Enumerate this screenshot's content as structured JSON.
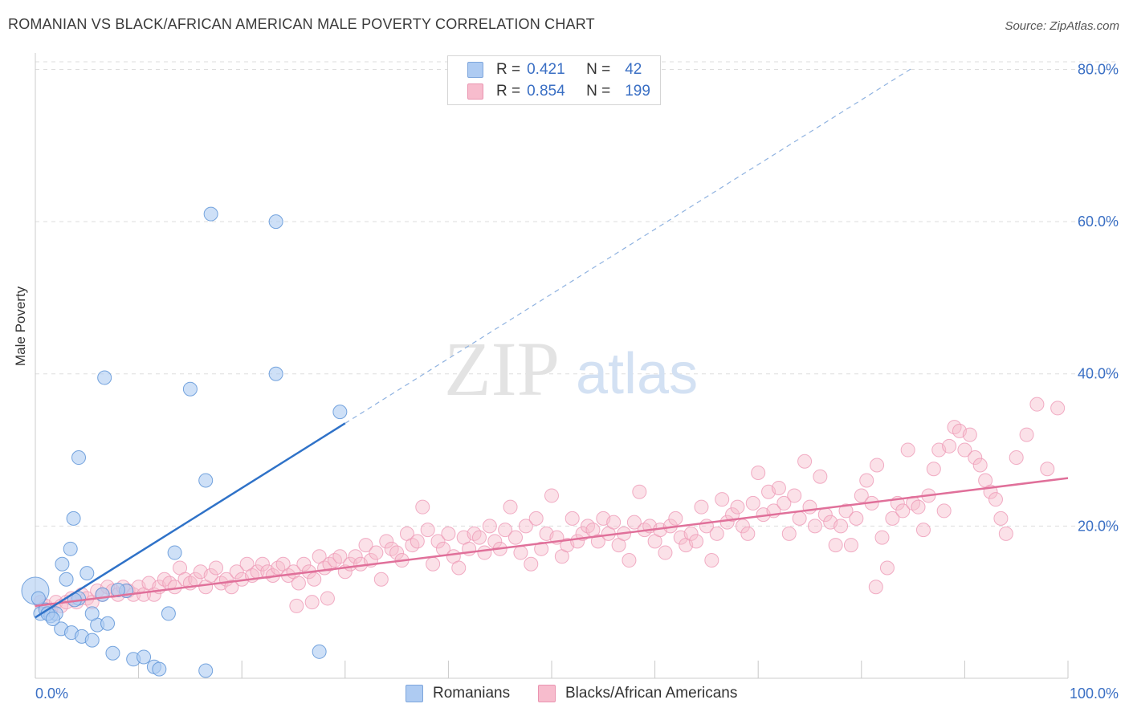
{
  "header": {
    "title": "ROMANIAN VS BLACK/AFRICAN AMERICAN MALE POVERTY CORRELATION CHART",
    "source": "Source: ZipAtlas.com"
  },
  "legend": {
    "rows": [
      {
        "r_label": "R =",
        "r_value": "0.421",
        "n_label": "N =",
        "n_value": "42",
        "color": "#aecbf2"
      },
      {
        "r_label": "R =",
        "r_value": "0.854",
        "n_label": "N =",
        "n_value": "199",
        "color": "#f7bccd"
      }
    ]
  },
  "bottom_legend": {
    "items": [
      {
        "label": "Romanians",
        "color": "#aecbf2"
      },
      {
        "label": "Blacks/African Americans",
        "color": "#f7bccd"
      }
    ]
  },
  "colors": {
    "blue_fill": "#aecbf2",
    "blue_line": "#2f72c8",
    "pink_fill": "#f7bccd",
    "pink_line": "#e0709a",
    "tick_blue": "#3a6fc4",
    "grid": "#dddddd"
  },
  "watermark": {
    "zip": "ZIP",
    "atlas": "atlas"
  },
  "chart_data": {
    "type": "scatter",
    "xlabel": "",
    "ylabel": "Male Poverty",
    "x_tick_labels": [
      "0.0%",
      "100.0%"
    ],
    "y_tick_labels": [
      "20.0%",
      "40.0%",
      "60.0%",
      "80.0%"
    ],
    "y_ticks": [
      20,
      40,
      60,
      80
    ],
    "xlim": [
      0,
      100
    ],
    "ylim": [
      0,
      81
    ],
    "grid": true,
    "series": [
      {
        "name": "Romanians",
        "trend": {
          "x0": 0,
          "y0": 8.0,
          "x1": 30,
          "y1": 33.5,
          "dashed_to_x": 85
        },
        "points": [
          [
            0,
            11.5
          ],
          [
            0.3,
            10.5
          ],
          [
            0.5,
            8.5
          ],
          [
            1,
            9
          ],
          [
            1.5,
            8.2
          ],
          [
            2,
            8.5
          ],
          [
            1.2,
            8.5
          ],
          [
            2.5,
            6.5
          ],
          [
            3.5,
            6
          ],
          [
            4.5,
            5.5
          ],
          [
            5.5,
            5
          ],
          [
            6,
            7
          ],
          [
            7,
            7.2
          ],
          [
            5.5,
            8.5
          ],
          [
            4.2,
            10.5
          ],
          [
            5,
            13.8
          ],
          [
            3,
            13
          ],
          [
            2.6,
            15
          ],
          [
            3.4,
            17
          ],
          [
            3.7,
            21
          ],
          [
            4.2,
            29
          ],
          [
            6.7,
            39.5
          ],
          [
            7.5,
            3.3
          ],
          [
            9.5,
            2.5
          ],
          [
            10.5,
            2.8
          ],
          [
            11.5,
            1.5
          ],
          [
            12,
            1.2
          ],
          [
            16.5,
            1
          ],
          [
            13.5,
            16.5
          ],
          [
            12.9,
            8.5
          ],
          [
            15,
            38
          ],
          [
            16.5,
            26
          ],
          [
            17,
            61
          ],
          [
            23.3,
            40
          ],
          [
            23.3,
            60
          ],
          [
            29.5,
            35
          ],
          [
            27.5,
            3.5
          ],
          [
            8.8,
            11.5
          ],
          [
            3.8,
            10.3
          ],
          [
            1.7,
            7.8
          ],
          [
            6.5,
            11
          ],
          [
            8,
            11.6
          ]
        ]
      },
      {
        "name": "Blacks/African Americans",
        "trend": {
          "x0": 0,
          "y0": 9.5,
          "x1": 100,
          "y1": 26.3
        },
        "points": [
          [
            0.5,
            10
          ],
          [
            1,
            9.5
          ],
          [
            1.5,
            9
          ],
          [
            2,
            10
          ],
          [
            2.5,
            9.5
          ],
          [
            3,
            10
          ],
          [
            3.5,
            10.5
          ],
          [
            4,
            10
          ],
          [
            4.5,
            11
          ],
          [
            5,
            10.5
          ],
          [
            5.5,
            10
          ],
          [
            6,
            11.5
          ],
          [
            6.5,
            11
          ],
          [
            7,
            12
          ],
          [
            7.5,
            11.5
          ],
          [
            8,
            11
          ],
          [
            8.5,
            12
          ],
          [
            9,
            11.5
          ],
          [
            9.5,
            11
          ],
          [
            10,
            12
          ],
          [
            10.5,
            11
          ],
          [
            11,
            12.5
          ],
          [
            11.5,
            11
          ],
          [
            12,
            12
          ],
          [
            12.5,
            13
          ],
          [
            13,
            12.5
          ],
          [
            13.5,
            12
          ],
          [
            14,
            14.5
          ],
          [
            14.5,
            13
          ],
          [
            15,
            12.5
          ],
          [
            15.5,
            13
          ],
          [
            16,
            14
          ],
          [
            16.5,
            12
          ],
          [
            17,
            13.5
          ],
          [
            17.5,
            14.5
          ],
          [
            18,
            12.5
          ],
          [
            18.5,
            13
          ],
          [
            19,
            12
          ],
          [
            19.5,
            14
          ],
          [
            20,
            13
          ],
          [
            20.5,
            15
          ],
          [
            21,
            13.5
          ],
          [
            21.5,
            14
          ],
          [
            22,
            15
          ],
          [
            22.5,
            14
          ],
          [
            23,
            13.5
          ],
          [
            23.5,
            14.5
          ],
          [
            24,
            15
          ],
          [
            24.5,
            13.5
          ],
          [
            25,
            14
          ],
          [
            25.5,
            12.5
          ],
          [
            26,
            15
          ],
          [
            26.5,
            14
          ],
          [
            27,
            13
          ],
          [
            27.5,
            16
          ],
          [
            28,
            14.5
          ],
          [
            28.5,
            15
          ],
          [
            29,
            15.5
          ],
          [
            29.5,
            16
          ],
          [
            30,
            14
          ],
          [
            30.5,
            15
          ],
          [
            31,
            16
          ],
          [
            31.5,
            15
          ],
          [
            32,
            17.5
          ],
          [
            32.5,
            15.5
          ],
          [
            33,
            16.5
          ],
          [
            33.5,
            13
          ],
          [
            34,
            18
          ],
          [
            34.5,
            17
          ],
          [
            35,
            16.5
          ],
          [
            35.5,
            15.5
          ],
          [
            36,
            19
          ],
          [
            36.5,
            17.5
          ],
          [
            37,
            18
          ],
          [
            37.5,
            22.5
          ],
          [
            38,
            19.5
          ],
          [
            38.5,
            15
          ],
          [
            39,
            18
          ],
          [
            39.5,
            17
          ],
          [
            40,
            19
          ],
          [
            40.5,
            16
          ],
          [
            41,
            14.5
          ],
          [
            41.5,
            18.5
          ],
          [
            42,
            17
          ],
          [
            42.5,
            19
          ],
          [
            43,
            18.5
          ],
          [
            43.5,
            16.5
          ],
          [
            44,
            20
          ],
          [
            44.5,
            18
          ],
          [
            45,
            17
          ],
          [
            45.5,
            19.5
          ],
          [
            46,
            22.5
          ],
          [
            46.5,
            18.5
          ],
          [
            47,
            16.5
          ],
          [
            47.5,
            20
          ],
          [
            48,
            15
          ],
          [
            48.5,
            21
          ],
          [
            49,
            17
          ],
          [
            49.5,
            19
          ],
          [
            50,
            24
          ],
          [
            50.5,
            18.5
          ],
          [
            51,
            16
          ],
          [
            51.5,
            17.5
          ],
          [
            52,
            21
          ],
          [
            52.5,
            18
          ],
          [
            53,
            19
          ],
          [
            53.5,
            20
          ],
          [
            54,
            19.5
          ],
          [
            54.5,
            18
          ],
          [
            55,
            21
          ],
          [
            55.5,
            19
          ],
          [
            56,
            20.5
          ],
          [
            56.5,
            17.5
          ],
          [
            57,
            19
          ],
          [
            57.5,
            15.5
          ],
          [
            58,
            20.5
          ],
          [
            58.5,
            24.5
          ],
          [
            59,
            19.5
          ],
          [
            59.5,
            20
          ],
          [
            60,
            18
          ],
          [
            60.5,
            19.5
          ],
          [
            61,
            16.5
          ],
          [
            61.5,
            20
          ],
          [
            62,
            21
          ],
          [
            62.5,
            18.5
          ],
          [
            63,
            17.5
          ],
          [
            63.5,
            19
          ],
          [
            64,
            18
          ],
          [
            64.5,
            22.5
          ],
          [
            65,
            20
          ],
          [
            65.5,
            15.5
          ],
          [
            66,
            19
          ],
          [
            66.5,
            23.5
          ],
          [
            67,
            20.5
          ],
          [
            67.5,
            21.5
          ],
          [
            68,
            22.5
          ],
          [
            68.5,
            20
          ],
          [
            69,
            19
          ],
          [
            69.5,
            23
          ],
          [
            70,
            27
          ],
          [
            70.5,
            21.5
          ],
          [
            71,
            24.5
          ],
          [
            71.5,
            22
          ],
          [
            72,
            25
          ],
          [
            72.5,
            23
          ],
          [
            73,
            19
          ],
          [
            73.5,
            24
          ],
          [
            74,
            21
          ],
          [
            74.5,
            28.5
          ],
          [
            75,
            22.5
          ],
          [
            75.5,
            20
          ],
          [
            76,
            26.5
          ],
          [
            76.5,
            21.5
          ],
          [
            77,
            20.5
          ],
          [
            77.5,
            17.5
          ],
          [
            78,
            20
          ],
          [
            78.5,
            22
          ],
          [
            79,
            17.5
          ],
          [
            79.5,
            21
          ],
          [
            80,
            24
          ],
          [
            80.5,
            26
          ],
          [
            81,
            23
          ],
          [
            81.5,
            28
          ],
          [
            82,
            18.5
          ],
          [
            82.5,
            14.5
          ],
          [
            83,
            21
          ],
          [
            83.5,
            23
          ],
          [
            84,
            22
          ],
          [
            84.5,
            30
          ],
          [
            85,
            23
          ],
          [
            85.5,
            22.5
          ],
          [
            86,
            19.5
          ],
          [
            86.5,
            24
          ],
          [
            87,
            27.5
          ],
          [
            87.5,
            30
          ],
          [
            88,
            22
          ],
          [
            88.5,
            30.5
          ],
          [
            89,
            33
          ],
          [
            89.5,
            32.5
          ],
          [
            90,
            30
          ],
          [
            90.5,
            32
          ],
          [
            91,
            29
          ],
          [
            91.5,
            28
          ],
          [
            92,
            26
          ],
          [
            92.5,
            24.5
          ],
          [
            93,
            23.5
          ],
          [
            93.5,
            21
          ],
          [
            94,
            19
          ],
          [
            95,
            29
          ],
          [
            96,
            32
          ],
          [
            97,
            36
          ],
          [
            98,
            27.5
          ],
          [
            99,
            35.5
          ],
          [
            25.3,
            9.5
          ],
          [
            26.8,
            10
          ],
          [
            28.3,
            10.5
          ],
          [
            81.4,
            12
          ]
        ]
      }
    ]
  }
}
